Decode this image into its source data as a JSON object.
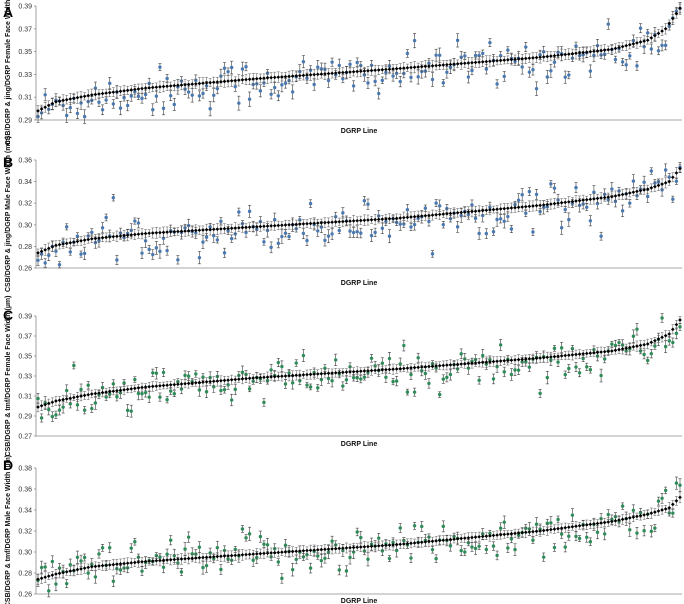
{
  "figure": {
    "xlabel": "DGRP Line",
    "colors": {
      "reference": "#000000",
      "blue": "#4a78b0",
      "green": "#2e8b57",
      "axis": "#8a8a8a"
    }
  },
  "chart_data": [
    {
      "panel": "A",
      "type": "scatter",
      "ylabel": "CSB/DGRP & jing/DGRP Female Face Width (mm)",
      "xlabel": "DGRP Line",
      "ylim": [
        0.29,
        0.39
      ],
      "yticks": [
        0.29,
        0.31,
        0.33,
        0.35,
        0.37,
        0.39
      ],
      "n_lines": 180,
      "series": [
        {
          "name": "CSB/DGRP",
          "color": "#000000",
          "curve": [
            [
              0,
              0.298
            ],
            [
              5,
              0.306
            ],
            [
              15,
              0.312
            ],
            [
              30,
              0.318
            ],
            [
              60,
              0.326
            ],
            [
              100,
              0.335
            ],
            [
              140,
              0.345
            ],
            [
              160,
              0.352
            ],
            [
              170,
              0.36
            ],
            [
              175,
              0.37
            ],
            [
              179,
              0.388
            ]
          ],
          "error_bar": 0.004
        },
        {
          "name": "jing/DGRP",
          "color": "#4a78b0",
          "offset": -0.003,
          "noise": 0.01,
          "error_bar": 0.004
        }
      ]
    },
    {
      "panel": "B",
      "type": "scatter",
      "ylabel": "CSB/DGRP & jing/DGRP Male Face Width (mm)",
      "xlabel": "DGRP Line",
      "ylim": [
        0.26,
        0.36
      ],
      "yticks": [
        0.26,
        0.28,
        0.3,
        0.32,
        0.34,
        0.36
      ],
      "n_lines": 180,
      "series": [
        {
          "name": "CSB/DGRP",
          "color": "#000000",
          "curve": [
            [
              0,
              0.274
            ],
            [
              5,
              0.281
            ],
            [
              15,
              0.287
            ],
            [
              30,
              0.292
            ],
            [
              60,
              0.298
            ],
            [
              100,
              0.306
            ],
            [
              140,
              0.318
            ],
            [
              160,
              0.326
            ],
            [
              170,
              0.333
            ],
            [
              176,
              0.34
            ],
            [
              179,
              0.352
            ]
          ],
          "error_bar": 0.004
        },
        {
          "name": "jing/DGRP",
          "color": "#4a78b0",
          "offset": -0.002,
          "noise": 0.01,
          "error_bar": 0.004
        }
      ]
    },
    {
      "panel": "C",
      "type": "scatter",
      "ylabel": "CSB/DGRP & tmf/DGRP Female Face Width (µm)",
      "xlabel": "DGRP Line",
      "ylim": [
        0.27,
        0.39
      ],
      "yticks": [
        0.27,
        0.29,
        0.31,
        0.33,
        0.35,
        0.37,
        0.39
      ],
      "n_lines": 180,
      "series": [
        {
          "name": "CSB/DGRP",
          "color": "#000000",
          "curve": [
            [
              0,
              0.299
            ],
            [
              5,
              0.305
            ],
            [
              15,
              0.312
            ],
            [
              30,
              0.319
            ],
            [
              60,
              0.328
            ],
            [
              100,
              0.337
            ],
            [
              140,
              0.348
            ],
            [
              160,
              0.355
            ],
            [
              170,
              0.362
            ],
            [
              176,
              0.372
            ],
            [
              179,
              0.386
            ]
          ],
          "error_bar": 0.004
        },
        {
          "name": "tmf/DGRP",
          "color": "#2e8b57",
          "offset": -0.004,
          "noise": 0.011,
          "error_bar": 0.004
        }
      ]
    },
    {
      "panel": "D",
      "type": "scatter",
      "ylabel": "CSB/DGRP & tmf/DGRP Male Face Width (µm)",
      "xlabel": "DGRP Line",
      "ylim": [
        0.26,
        0.38
      ],
      "yticks": [
        0.26,
        0.28,
        0.3,
        0.32,
        0.34,
        0.36,
        0.38
      ],
      "n_lines": 180,
      "series": [
        {
          "name": "CSB/DGRP",
          "color": "#000000",
          "curve": [
            [
              0,
              0.274
            ],
            [
              5,
              0.279
            ],
            [
              15,
              0.286
            ],
            [
              30,
              0.291
            ],
            [
              60,
              0.298
            ],
            [
              100,
              0.307
            ],
            [
              140,
              0.32
            ],
            [
              160,
              0.329
            ],
            [
              170,
              0.336
            ],
            [
              176,
              0.342
            ],
            [
              179,
              0.352
            ]
          ],
          "error_bar": 0.004
        },
        {
          "name": "tmf/DGRP",
          "color": "#2e8b57",
          "offset": -0.002,
          "noise": 0.011,
          "error_bar": 0.004
        }
      ]
    }
  ]
}
